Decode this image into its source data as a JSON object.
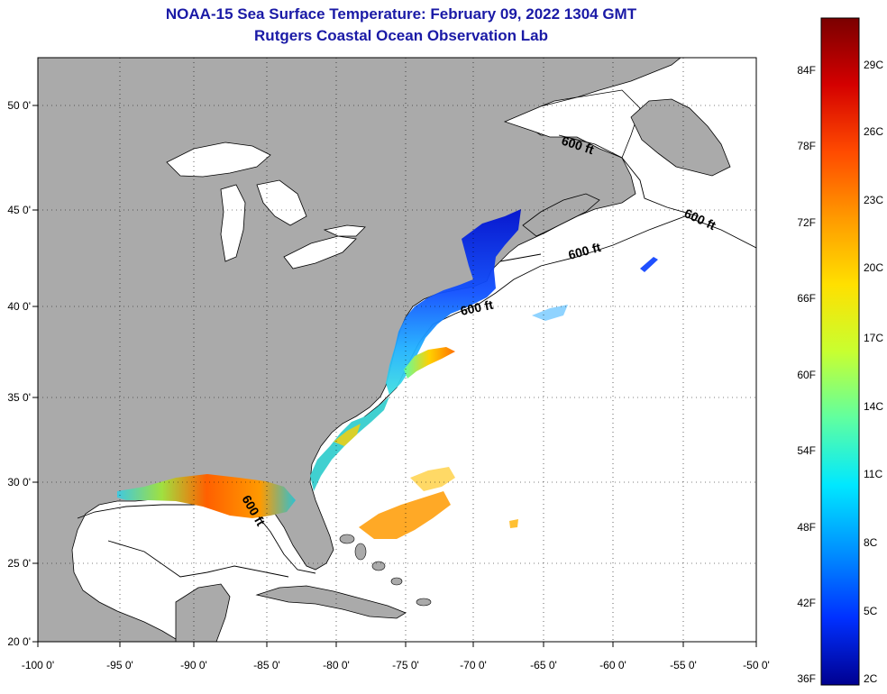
{
  "title": {
    "line1": "NOAA-15 Sea Surface Temperature:  February 09, 2022 1304 GMT",
    "line2": "Rutgers Coastal Ocean Observation Lab"
  },
  "axes": {
    "lon_labels": [
      "-100 0'",
      "-95 0'",
      "-90 0'",
      "-85 0'",
      "-80 0'",
      "-75 0'",
      "-70 0'",
      "-65 0'",
      "-60 0'",
      "-55 0'",
      "-50 0'"
    ],
    "lat_labels": [
      "50 0'",
      "45 0'",
      "40 0'",
      "35 0'",
      "30 0'",
      "25 0'",
      "20 0'"
    ]
  },
  "contours": {
    "label": "600 ft",
    "count": 5
  },
  "colorbar": {
    "fahrenheit_labels": [
      "84F",
      "78F",
      "72F",
      "66F",
      "60F",
      "54F",
      "48F",
      "42F",
      "36F"
    ],
    "celsius_labels": [
      "29C",
      "26C",
      "23C",
      "20C",
      "17C",
      "14C",
      "11C",
      "8C",
      "5C",
      "2C"
    ],
    "colors": [
      "#7a0000",
      "#d40000",
      "#ff4a00",
      "#ff9a00",
      "#ffe000",
      "#c8ff30",
      "#60ffa0",
      "#00e8ff",
      "#0090ff",
      "#0030ff",
      "#000090"
    ]
  },
  "colors": {
    "land": "#aaaaaa",
    "ocean": "#ffffff",
    "title": "#1a1aa6"
  }
}
